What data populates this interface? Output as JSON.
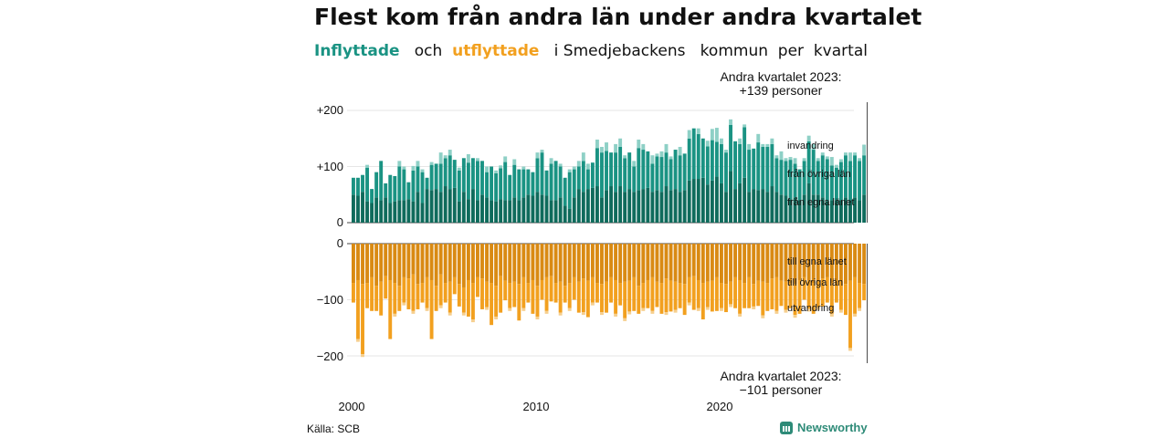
{
  "title": "Flest kom från andra län under andra kvartalet",
  "subtitle": {
    "in_word": "Inflyttade",
    "connector": "och",
    "out_word": "utflyttade",
    "rest": "i Smedjebackens   kommun  per  kvartal"
  },
  "source": "Källa: SCB",
  "brand": "Newsworthy",
  "colors": {
    "in_own": "#0f6b5c",
    "in_other": "#1a9383",
    "in_total": "#8ed0c6",
    "out_own": "#d98a13",
    "out_other": "#f2a01f",
    "out_total": "#f6cf8e",
    "grid": "#e6e6e6",
    "axis": "#444444"
  },
  "chart_data": [
    {
      "type": "bar",
      "stacked": true,
      "x_tick_labels": [
        "2000",
        "2010",
        "2020"
      ],
      "ylim": [
        0,
        210
      ],
      "y_tick_labels": [
        "+200",
        "+100",
        "0"
      ],
      "y_tick_values": [
        200,
        100,
        0
      ],
      "x_start": 2000.0,
      "x_step": 0.25,
      "series": [
        {
          "name": "från egna länet",
          "values": [
            50,
            48,
            55,
            38,
            35,
            45,
            40,
            45,
            35,
            38,
            40,
            40,
            42,
            38,
            55,
            35,
            60,
            58,
            60,
            55,
            65,
            60,
            62,
            38,
            55,
            42,
            60,
            40,
            50,
            45,
            40,
            38,
            42,
            40,
            40,
            45,
            40,
            45,
            50,
            48,
            55,
            50,
            48,
            40,
            40,
            45,
            30,
            25,
            45,
            60,
            55,
            60,
            62,
            65,
            45,
            58,
            65,
            55,
            65,
            55,
            60,
            55,
            58,
            60,
            62,
            55,
            58,
            55,
            65,
            58,
            60,
            55,
            58,
            75,
            78,
            78,
            80,
            68,
            75,
            82,
            70,
            55,
            92,
            60,
            70,
            80,
            55,
            60,
            58,
            60,
            55,
            65,
            55,
            50,
            48,
            42,
            45,
            40,
            50,
            70,
            50,
            50,
            45,
            38,
            40,
            40,
            40,
            45,
            40,
            45,
            40,
            50
          ]
        },
        {
          "name": "från övriga län",
          "values": [
            30,
            32,
            30,
            60,
            25,
            45,
            70,
            25,
            50,
            45,
            60,
            55,
            30,
            55,
            45,
            55,
            20,
            45,
            45,
            50,
            50,
            60,
            50,
            55,
            60,
            65,
            55,
            70,
            60,
            45,
            60,
            50,
            55,
            68,
            45,
            58,
            55,
            50,
            45,
            42,
            60,
            75,
            45,
            65,
            70,
            55,
            50,
            65,
            50,
            40,
            55,
            35,
            45,
            68,
            80,
            70,
            60,
            70,
            70,
            60,
            65,
            45,
            75,
            70,
            65,
            50,
            60,
            62,
            60,
            55,
            70,
            65,
            65,
            75,
            90,
            80,
            70,
            68,
            72,
            62,
            70,
            70,
            82,
            85,
            70,
            90,
            75,
            72,
            85,
            75,
            80,
            75,
            60,
            62,
            62,
            70,
            60,
            55,
            60,
            75,
            80,
            60,
            75,
            75,
            62,
            58,
            68,
            75,
            70,
            75,
            70,
            70
          ]
        },
        {
          "name": "invandring",
          "values": [
            0,
            0,
            0,
            5,
            0,
            0,
            0,
            0,
            0,
            0,
            10,
            5,
            0,
            8,
            10,
            5,
            0,
            5,
            0,
            20,
            5,
            10,
            0,
            5,
            0,
            15,
            0,
            5,
            0,
            10,
            0,
            5,
            5,
            10,
            0,
            10,
            0,
            5,
            0,
            0,
            10,
            5,
            0,
            10,
            0,
            5,
            0,
            5,
            5,
            10,
            15,
            10,
            0,
            15,
            10,
            15,
            0,
            15,
            15,
            5,
            0,
            10,
            15,
            10,
            0,
            15,
            5,
            10,
            15,
            5,
            0,
            15,
            0,
            15,
            0,
            10,
            0,
            10,
            20,
            25,
            10,
            5,
            10,
            0,
            10,
            5,
            10,
            0,
            15,
            5,
            5,
            10,
            5,
            15,
            5,
            5,
            10,
            0,
            5,
            10,
            10,
            5,
            5,
            5,
            15,
            5,
            5,
            5,
            15,
            5,
            5,
            19
          ]
        }
      ]
    },
    {
      "type": "bar",
      "stacked": true,
      "ylim": [
        -210,
        0
      ],
      "y_tick_labels": [
        "0",
        "−100",
        "−200"
      ],
      "y_tick_values": [
        0,
        -100,
        -200
      ],
      "x_start": 2000.0,
      "x_step": 0.25,
      "series": [
        {
          "name": "till egna länet",
          "values": [
            -70,
            -65,
            -72,
            -70,
            -60,
            -75,
            -68,
            -58,
            -65,
            -70,
            -75,
            -60,
            -62,
            -55,
            -72,
            -70,
            -60,
            -65,
            -75,
            -55,
            -70,
            -68,
            -60,
            -72,
            -78,
            -65,
            -70,
            -60,
            -62,
            -68,
            -70,
            -75,
            -58,
            -66,
            -70,
            -68,
            -72,
            -60,
            -70,
            -65,
            -75,
            -65,
            -60,
            -58,
            -70,
            -68,
            -75,
            -70,
            -60,
            -68,
            -62,
            -66,
            -60,
            -70,
            -72,
            -68,
            -60,
            -65,
            -70,
            -68,
            -66,
            -60,
            -75,
            -70,
            -65,
            -60,
            -68,
            -70,
            -62,
            -66,
            -68,
            -70,
            -72,
            -60,
            -58,
            -65,
            -70,
            -68,
            -66,
            -60,
            -70,
            -72,
            -68,
            -60,
            -65,
            -70,
            -60,
            -72,
            -66,
            -68,
            -70,
            -62,
            -60,
            -66,
            -68,
            -70,
            -72,
            -65,
            -60,
            -66,
            -70,
            -68,
            -62,
            -60,
            -70,
            -65,
            -68,
            -72,
            -66,
            -60,
            -70,
            -72
          ]
        },
        {
          "name": "till övriga län",
          "values": [
            -35,
            -105,
            -125,
            -45,
            -60,
            -45,
            -60,
            -40,
            -105,
            -55,
            -45,
            -45,
            -55,
            -65,
            -45,
            -35,
            -55,
            -105,
            -45,
            -55,
            -35,
            -55,
            -30,
            -40,
            -45,
            -65,
            -65,
            -35,
            -55,
            -45,
            -75,
            -55,
            -65,
            -35,
            -45,
            -45,
            -65,
            -55,
            -35,
            -60,
            -55,
            -35,
            -60,
            -45,
            -35,
            -55,
            -30,
            -45,
            -40,
            -55,
            -60,
            -65,
            -45,
            -35,
            -50,
            -55,
            -45,
            -60,
            -40,
            -65,
            -55,
            -60,
            -50,
            -45,
            -50,
            -60,
            -45,
            -55,
            -60,
            -55,
            -50,
            -45,
            -55,
            -45,
            -60,
            -50,
            -65,
            -45,
            -55,
            -60,
            -45,
            -50,
            -40,
            -55,
            -60,
            -45,
            -55,
            -40,
            -45,
            -60,
            -50,
            -55,
            -60,
            -45,
            -50,
            -45,
            -55,
            -60,
            -40,
            -50,
            -55,
            -45,
            -50,
            -45,
            -55,
            -40,
            -50,
            -55,
            -120,
            -65,
            -45,
            -29
          ]
        },
        {
          "name": "utvandring",
          "values": [
            0,
            -5,
            -5,
            0,
            0,
            0,
            0,
            0,
            0,
            -5,
            0,
            -5,
            0,
            -5,
            0,
            0,
            -5,
            0,
            0,
            -5,
            0,
            -5,
            0,
            0,
            -5,
            0,
            -5,
            0,
            0,
            -5,
            0,
            -5,
            0,
            0,
            -5,
            0,
            0,
            -5,
            0,
            0,
            -5,
            0,
            -5,
            0,
            0,
            -5,
            0,
            -5,
            0,
            0,
            -5,
            0,
            -5,
            0,
            -5,
            0,
            0,
            -5,
            0,
            -5,
            -5,
            0,
            0,
            -5,
            0,
            -5,
            0,
            0,
            -5,
            0,
            -5,
            0,
            0,
            -5,
            0,
            -5,
            0,
            -5,
            0,
            0,
            -5,
            0,
            -5,
            0,
            -5,
            0,
            0,
            -5,
            0,
            -5,
            0,
            0,
            -5,
            0,
            -5,
            0,
            -5,
            0,
            0,
            -5,
            0,
            -5,
            0,
            0,
            -5,
            0,
            -5,
            0,
            -5,
            -5,
            -5,
            0
          ]
        }
      ]
    }
  ],
  "annotations": {
    "top_line1": "Andra kvartalet 2023:",
    "top_line2": "+139 personer",
    "bottom_line1": "Andra kvartalet 2023:",
    "bottom_line2": "−101 personer"
  },
  "legend": {
    "in": [
      "invandring",
      "från övriga län",
      "från egna länet"
    ],
    "out": [
      "till egna länet",
      "till övriga län",
      "utvandring"
    ]
  }
}
